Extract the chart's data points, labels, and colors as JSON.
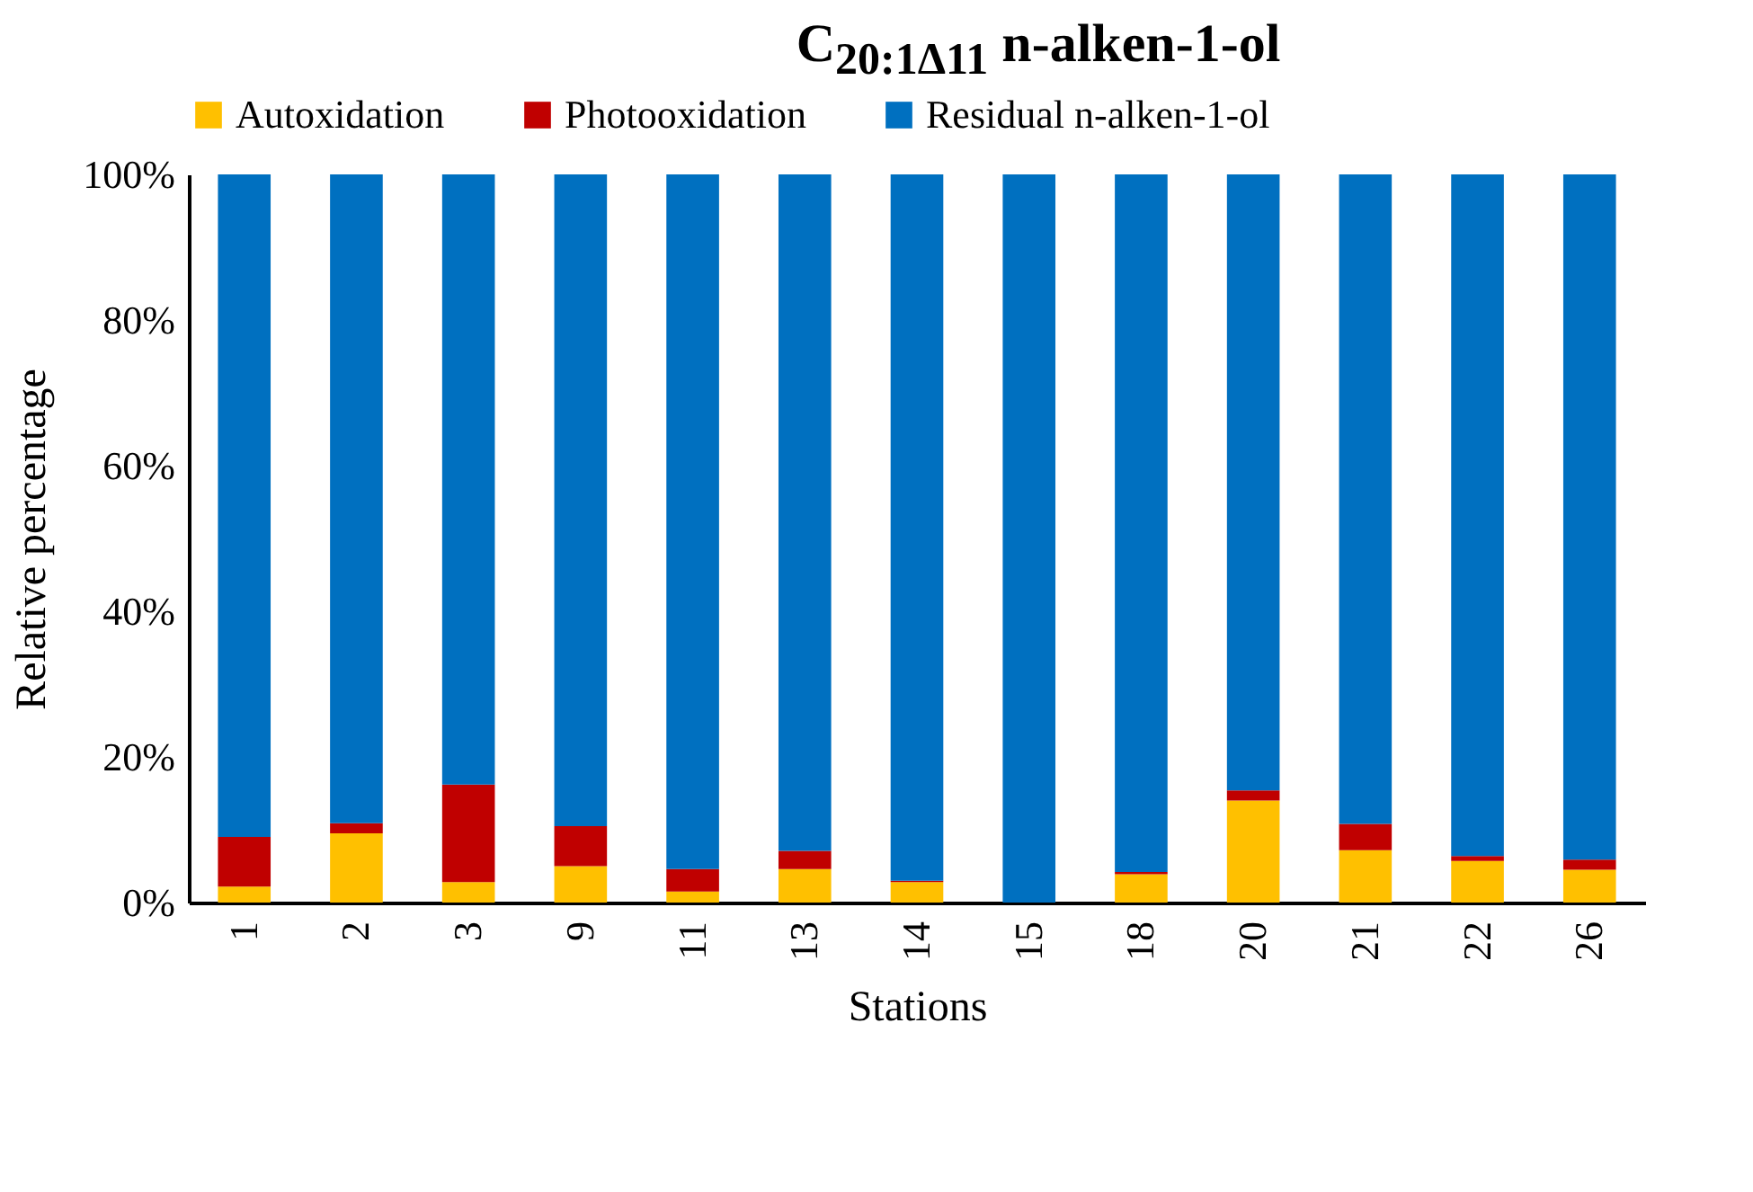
{
  "chart_data": {
    "type": "bar",
    "title": "C$_{20:1Δ11}$ n-alken-1-ol",
    "xlabel": "Stations",
    "ylabel": "Relative percentage",
    "categories": [
      "1",
      "2",
      "3",
      "9",
      "11",
      "13",
      "14",
      "15",
      "18",
      "20",
      "21",
      "22",
      "26"
    ],
    "stacked": true,
    "series": [
      {
        "name": "Autoxidation",
        "color": "#ffc000",
        "values": [
          2.2,
          9.5,
          2.8,
          5.0,
          1.5,
          4.6,
          2.8,
          0,
          3.9,
          14.0,
          7.2,
          5.7,
          4.5
        ]
      },
      {
        "name": "Photooxidation",
        "color": "#c00000",
        "values": [
          6.8,
          1.4,
          13.4,
          5.5,
          3.1,
          2.5,
          0.2,
          0,
          0.3,
          1.4,
          3.6,
          0.7,
          1.4
        ]
      },
      {
        "name": "Residual n-alken-1-ol",
        "color": "#0070c0",
        "values": [
          91.0,
          89.1,
          83.8,
          89.5,
          95.4,
          92.9,
          97.0,
          100,
          95.8,
          84.6,
          89.2,
          93.6,
          94.1
        ]
      }
    ],
    "ylim": [
      0,
      100
    ],
    "yticks": [
      {
        "value": 0,
        "label": "0%"
      },
      {
        "value": 20,
        "label": "20%"
      },
      {
        "value": 40,
        "label": "40%"
      },
      {
        "value": 60,
        "label": "60%"
      },
      {
        "value": 80,
        "label": "80%"
      },
      {
        "value": 100,
        "label": "100%"
      }
    ],
    "grid": false,
    "legend": "top"
  }
}
